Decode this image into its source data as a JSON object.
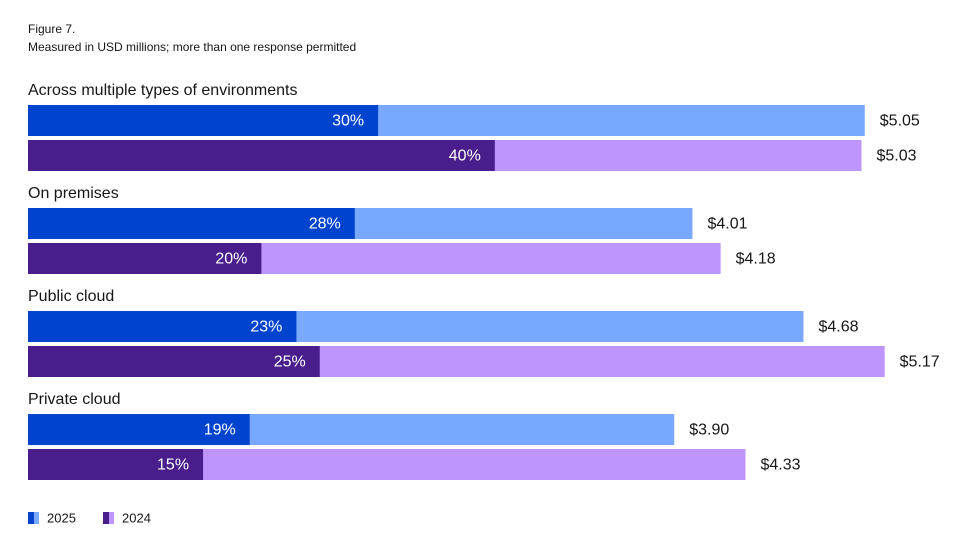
{
  "chart_data": {
    "type": "bar",
    "orientation": "horizontal",
    "title": "Figure 7.",
    "subtitle": "Measured in USD millions; more than one response permitted",
    "categories": [
      "Across multiple types of environments",
      "On premises",
      "Public cloud",
      "Private cloud"
    ],
    "series": [
      {
        "name": "2025",
        "color": "#78a9ff",
        "share_color": "#0043ce",
        "values": [
          5.05,
          4.01,
          4.68,
          3.9
        ],
        "value_labels": [
          "$5.05",
          "$4.01",
          "$4.68",
          "$3.90"
        ],
        "shares": [
          30,
          28,
          23,
          19
        ],
        "share_labels": [
          "30%",
          "28%",
          "23%",
          "19%"
        ]
      },
      {
        "name": "2024",
        "color": "#be95ff",
        "share_color": "#491d8b",
        "values": [
          5.03,
          4.18,
          5.17,
          4.33
        ],
        "value_labels": [
          "$5.03",
          "$4.18",
          "$5.17",
          "$4.33"
        ],
        "shares": [
          40,
          20,
          25,
          15
        ],
        "share_labels": [
          "40%",
          "20%",
          "25%",
          "15%"
        ]
      }
    ],
    "legend": "bottom-left"
  }
}
